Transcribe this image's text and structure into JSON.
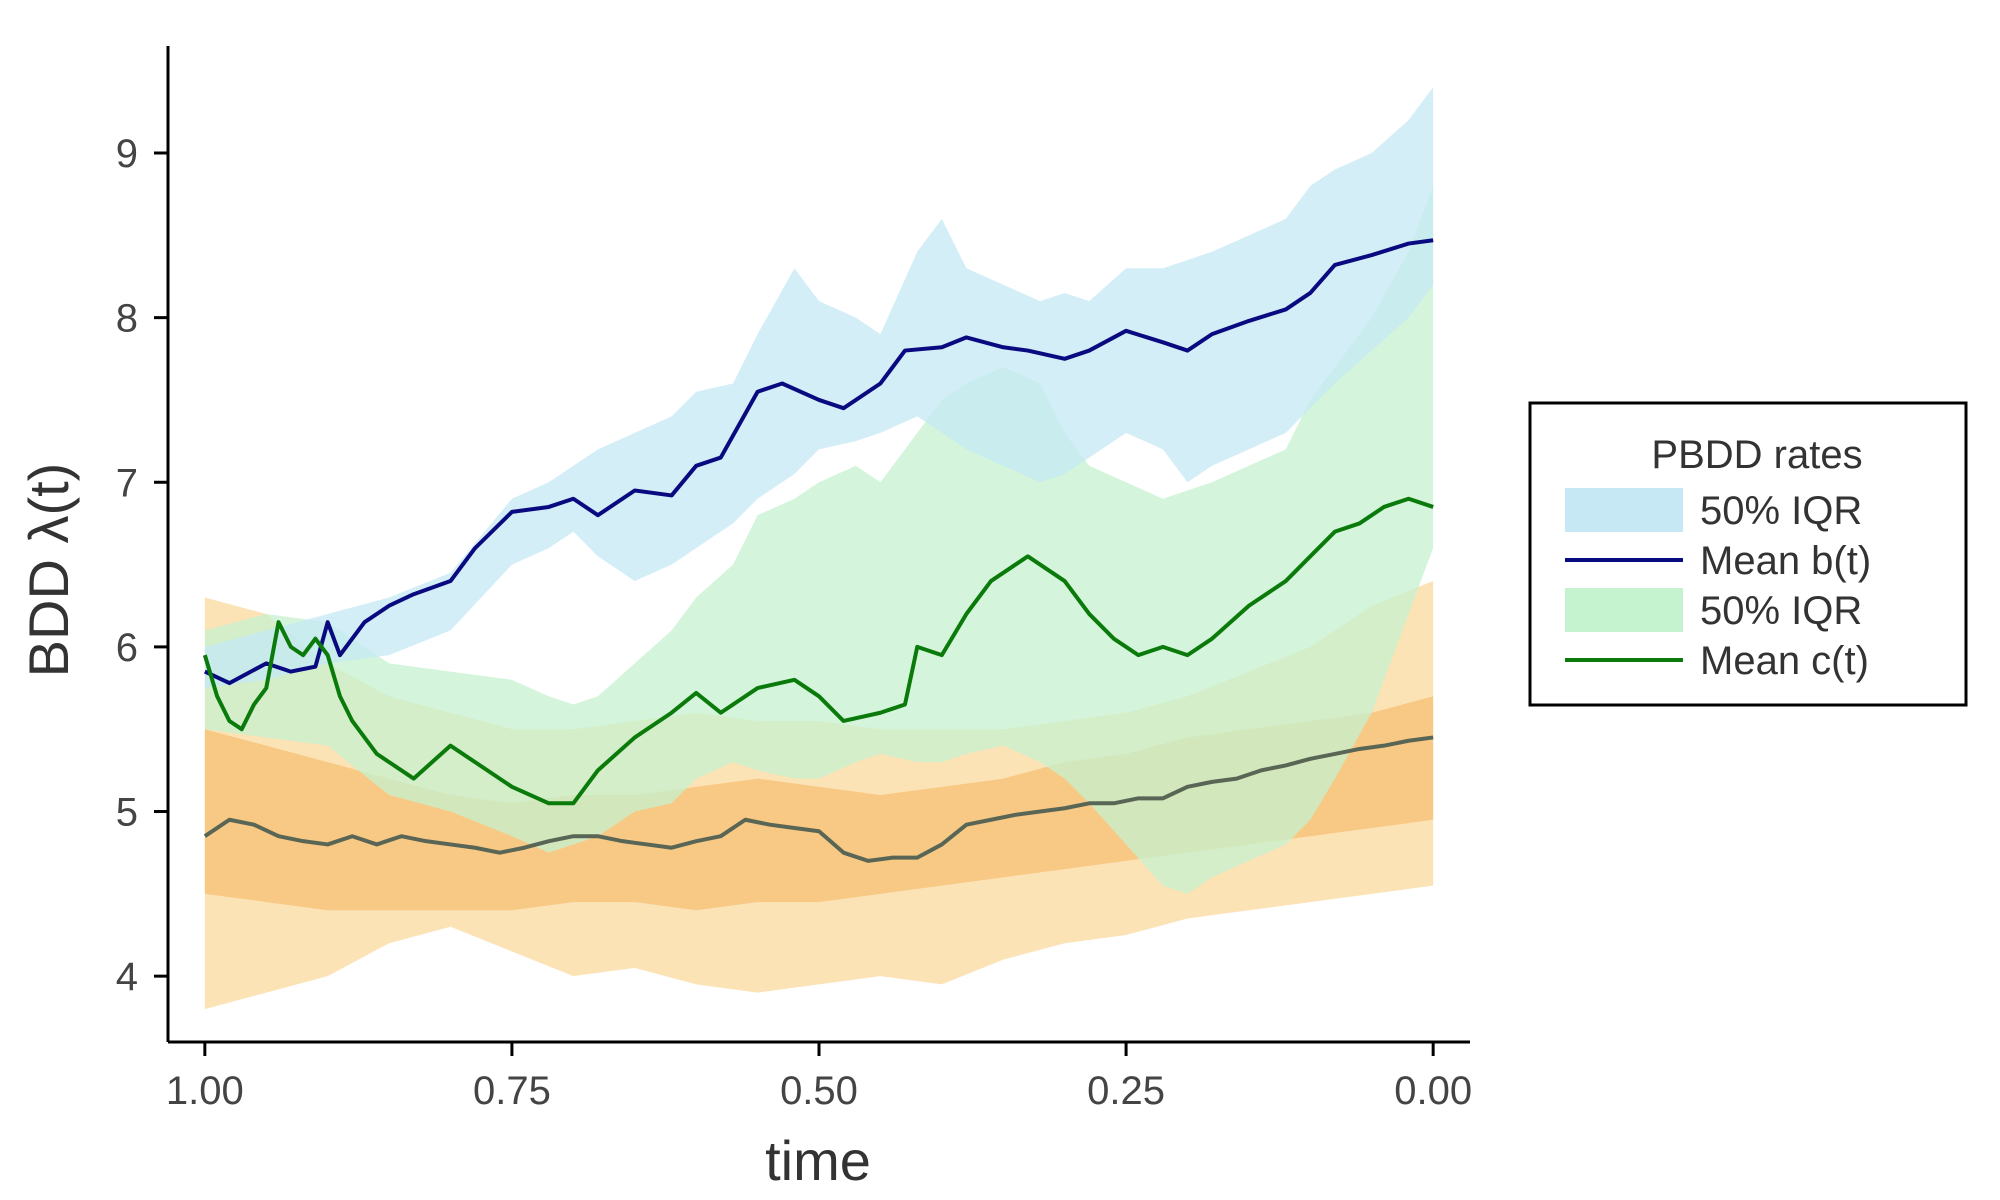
{
  "chart_data": {
    "type": "line",
    "xlabel": "time",
    "ylabel": "BDD λ(t)",
    "x_reversed": true,
    "xlim": [
      1.03,
      -0.03
    ],
    "ylim": [
      3.6,
      9.65
    ],
    "xticks": [
      1.0,
      0.75,
      0.5,
      0.25,
      0.0
    ],
    "xtick_labels": [
      "1.00",
      "0.75",
      "0.50",
      "0.25",
      "0.00"
    ],
    "yticks": [
      4,
      5,
      6,
      7,
      8,
      9
    ],
    "ytick_labels": [
      "4",
      "5",
      "6",
      "7",
      "8",
      "9"
    ],
    "grid": false,
    "legend": {
      "title": "PBDD rates",
      "placement": "right",
      "entries": [
        {
          "label": "50% IQR",
          "kind": "band",
          "color": "#c6e8f5"
        },
        {
          "label": "Mean b(t)",
          "kind": "line",
          "color": "#0a0a80"
        },
        {
          "label": "50% IQR",
          "kind": "band",
          "color": "#c5f2cf"
        },
        {
          "label": "Mean c(t)",
          "kind": "line",
          "color": "#0a7a0a"
        }
      ]
    },
    "series": [
      {
        "label_ref": "Mean b(t)",
        "kind": "line",
        "color": "#0a0a80",
        "x": [
          1.0,
          0.98,
          0.95,
          0.93,
          0.91,
          0.9,
          0.89,
          0.87,
          0.85,
          0.83,
          0.8,
          0.78,
          0.75,
          0.72,
          0.7,
          0.68,
          0.65,
          0.62,
          0.6,
          0.58,
          0.55,
          0.53,
          0.5,
          0.48,
          0.45,
          0.43,
          0.4,
          0.38,
          0.35,
          0.33,
          0.3,
          0.28,
          0.25,
          0.22,
          0.2,
          0.18,
          0.15,
          0.12,
          0.1,
          0.08,
          0.05,
          0.02,
          0.0
        ],
        "y": [
          5.85,
          5.78,
          5.9,
          5.85,
          5.88,
          6.15,
          5.95,
          6.15,
          6.25,
          6.32,
          6.4,
          6.6,
          6.82,
          6.85,
          6.9,
          6.8,
          6.95,
          6.92,
          7.1,
          7.15,
          7.55,
          7.6,
          7.5,
          7.45,
          7.6,
          7.8,
          7.82,
          7.88,
          7.82,
          7.8,
          7.75,
          7.8,
          7.92,
          7.85,
          7.8,
          7.9,
          7.98,
          8.05,
          8.15,
          8.32,
          8.38,
          8.45,
          8.47
        ]
      },
      {
        "label_ref": "Mean c(t)",
        "kind": "line",
        "color": "#0a7a0a",
        "x": [
          1.0,
          0.99,
          0.98,
          0.97,
          0.96,
          0.95,
          0.94,
          0.93,
          0.92,
          0.91,
          0.9,
          0.89,
          0.88,
          0.87,
          0.86,
          0.85,
          0.83,
          0.8,
          0.78,
          0.75,
          0.72,
          0.7,
          0.68,
          0.65,
          0.62,
          0.6,
          0.58,
          0.55,
          0.52,
          0.5,
          0.48,
          0.45,
          0.43,
          0.42,
          0.4,
          0.38,
          0.36,
          0.34,
          0.33,
          0.3,
          0.28,
          0.26,
          0.24,
          0.22,
          0.2,
          0.18,
          0.15,
          0.12,
          0.1,
          0.08,
          0.06,
          0.04,
          0.02,
          0.0
        ],
        "y": [
          5.95,
          5.7,
          5.55,
          5.5,
          5.65,
          5.75,
          6.15,
          6.0,
          5.95,
          6.05,
          5.95,
          5.7,
          5.55,
          5.45,
          5.35,
          5.3,
          5.2,
          5.4,
          5.3,
          5.15,
          5.05,
          5.05,
          5.25,
          5.45,
          5.6,
          5.72,
          5.6,
          5.75,
          5.8,
          5.7,
          5.55,
          5.6,
          5.65,
          6.0,
          5.95,
          6.2,
          6.4,
          6.5,
          6.55,
          6.4,
          6.2,
          6.05,
          5.95,
          6.0,
          5.95,
          6.05,
          6.25,
          6.4,
          6.55,
          6.7,
          6.75,
          6.85,
          6.9,
          6.85
        ]
      },
      {
        "kind": "line",
        "color": "#5a6655",
        "x": [
          1.0,
          0.98,
          0.96,
          0.94,
          0.92,
          0.9,
          0.88,
          0.86,
          0.84,
          0.82,
          0.8,
          0.78,
          0.76,
          0.74,
          0.72,
          0.7,
          0.68,
          0.66,
          0.64,
          0.62,
          0.6,
          0.58,
          0.56,
          0.54,
          0.52,
          0.5,
          0.48,
          0.46,
          0.44,
          0.42,
          0.4,
          0.38,
          0.36,
          0.34,
          0.32,
          0.3,
          0.28,
          0.26,
          0.24,
          0.22,
          0.2,
          0.18,
          0.16,
          0.14,
          0.12,
          0.1,
          0.08,
          0.06,
          0.04,
          0.02,
          0.0
        ],
        "y": [
          4.85,
          4.95,
          4.92,
          4.85,
          4.82,
          4.8,
          4.85,
          4.8,
          4.85,
          4.82,
          4.8,
          4.78,
          4.75,
          4.78,
          4.82,
          4.85,
          4.85,
          4.82,
          4.8,
          4.78,
          4.82,
          4.85,
          4.95,
          4.92,
          4.9,
          4.88,
          4.75,
          4.7,
          4.72,
          4.72,
          4.8,
          4.92,
          4.95,
          4.98,
          5.0,
          5.02,
          5.05,
          5.05,
          5.08,
          5.08,
          5.15,
          5.18,
          5.2,
          5.25,
          5.28,
          5.32,
          5.35,
          5.38,
          5.4,
          5.43,
          5.45
        ]
      }
    ],
    "bands": [
      {
        "label_ref": "50% IQR (b)",
        "color": "#c6e8f5",
        "x": [
          1.0,
          0.95,
          0.9,
          0.85,
          0.8,
          0.75,
          0.72,
          0.7,
          0.68,
          0.65,
          0.62,
          0.6,
          0.57,
          0.55,
          0.52,
          0.5,
          0.47,
          0.45,
          0.42,
          0.4,
          0.38,
          0.35,
          0.32,
          0.3,
          0.28,
          0.25,
          0.22,
          0.2,
          0.18,
          0.15,
          0.12,
          0.1,
          0.08,
          0.05,
          0.02,
          0.0
        ],
        "upper": [
          6.0,
          6.1,
          6.2,
          6.3,
          6.45,
          6.9,
          7.0,
          7.1,
          7.2,
          7.3,
          7.4,
          7.55,
          7.6,
          7.9,
          8.3,
          8.1,
          8.0,
          7.9,
          8.4,
          8.6,
          8.3,
          8.2,
          8.1,
          8.15,
          8.1,
          8.3,
          8.3,
          8.35,
          8.4,
          8.5,
          8.6,
          8.8,
          8.9,
          9.0,
          9.2,
          9.4
        ],
        "lower": [
          5.75,
          5.8,
          5.9,
          5.95,
          6.1,
          6.5,
          6.6,
          6.7,
          6.55,
          6.4,
          6.5,
          6.6,
          6.75,
          6.9,
          7.05,
          7.2,
          7.25,
          7.3,
          7.4,
          7.3,
          7.2,
          7.1,
          7.0,
          7.05,
          7.15,
          7.3,
          7.2,
          7.0,
          7.1,
          7.2,
          7.3,
          7.45,
          7.6,
          7.8,
          8.0,
          8.2
        ]
      },
      {
        "label_ref": "50% IQR (c)",
        "color": "#c5f2cf",
        "x": [
          1.0,
          0.95,
          0.9,
          0.85,
          0.8,
          0.75,
          0.72,
          0.7,
          0.68,
          0.65,
          0.62,
          0.6,
          0.57,
          0.55,
          0.52,
          0.5,
          0.47,
          0.45,
          0.42,
          0.4,
          0.38,
          0.35,
          0.32,
          0.3,
          0.28,
          0.25,
          0.22,
          0.2,
          0.18,
          0.15,
          0.12,
          0.1,
          0.08,
          0.05,
          0.02,
          0.0
        ],
        "upper": [
          6.1,
          6.2,
          6.15,
          5.9,
          5.85,
          5.8,
          5.7,
          5.65,
          5.7,
          5.9,
          6.1,
          6.3,
          6.5,
          6.8,
          6.9,
          7.0,
          7.1,
          7.0,
          7.3,
          7.5,
          7.6,
          7.7,
          7.6,
          7.3,
          7.1,
          7.0,
          6.9,
          6.95,
          7.0,
          7.1,
          7.2,
          7.5,
          7.7,
          8.0,
          8.4,
          8.8
        ],
        "lower": [
          5.5,
          5.45,
          5.4,
          5.1,
          5.0,
          4.85,
          4.75,
          4.8,
          4.85,
          5.0,
          5.05,
          5.2,
          5.3,
          5.25,
          5.2,
          5.2,
          5.3,
          5.35,
          5.3,
          5.3,
          5.35,
          5.4,
          5.3,
          5.2,
          5.05,
          4.8,
          4.55,
          4.5,
          4.6,
          4.7,
          4.8,
          4.95,
          5.2,
          5.6,
          6.2,
          6.6
        ]
      },
      {
        "color": "#fbd99e",
        "x": [
          1.0,
          0.95,
          0.9,
          0.85,
          0.8,
          0.75,
          0.7,
          0.65,
          0.6,
          0.55,
          0.5,
          0.45,
          0.4,
          0.35,
          0.3,
          0.25,
          0.2,
          0.15,
          0.1,
          0.05,
          0.0
        ],
        "upper": [
          6.3,
          6.2,
          5.9,
          5.7,
          5.6,
          5.5,
          5.5,
          5.55,
          5.6,
          5.55,
          5.55,
          5.5,
          5.5,
          5.5,
          5.55,
          5.6,
          5.7,
          5.85,
          6.0,
          6.25,
          6.4
        ],
        "lower": [
          3.8,
          3.9,
          4.0,
          4.2,
          4.3,
          4.15,
          4.0,
          4.05,
          3.95,
          3.9,
          3.95,
          4.0,
          3.95,
          4.1,
          4.2,
          4.25,
          4.35,
          4.4,
          4.45,
          4.5,
          4.55
        ]
      },
      {
        "color": "#f7c074",
        "x": [
          1.0,
          0.95,
          0.9,
          0.85,
          0.8,
          0.75,
          0.7,
          0.65,
          0.6,
          0.55,
          0.5,
          0.45,
          0.4,
          0.35,
          0.3,
          0.25,
          0.2,
          0.15,
          0.1,
          0.05,
          0.0
        ],
        "upper": [
          5.5,
          5.4,
          5.3,
          5.2,
          5.1,
          5.05,
          5.1,
          5.1,
          5.15,
          5.2,
          5.15,
          5.1,
          5.15,
          5.2,
          5.3,
          5.35,
          5.45,
          5.5,
          5.55,
          5.6,
          5.7
        ],
        "lower": [
          4.5,
          4.45,
          4.4,
          4.4,
          4.4,
          4.4,
          4.45,
          4.45,
          4.4,
          4.45,
          4.45,
          4.5,
          4.55,
          4.6,
          4.65,
          4.7,
          4.75,
          4.8,
          4.85,
          4.9,
          4.95
        ]
      }
    ]
  }
}
